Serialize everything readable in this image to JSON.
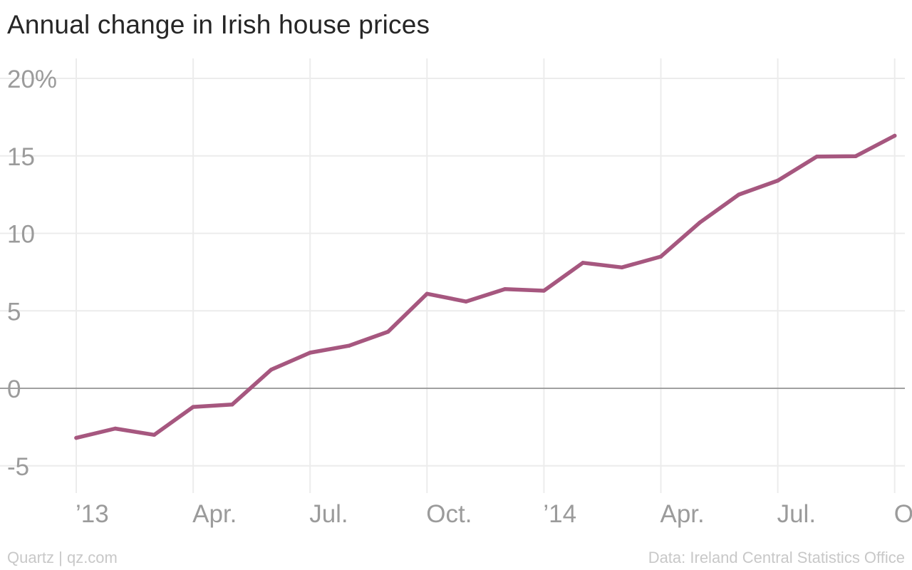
{
  "title": "Annual change in Irish house prices",
  "footer": {
    "source_left": "Quartz | qz.com",
    "source_right": "Data: Ireland Central Statistics Office"
  },
  "colors": {
    "line": "#a6577f",
    "grid": "#ececec",
    "zero_line": "#a0a0a0",
    "tick_text": "#9b9b9b"
  },
  "chart_data": {
    "type": "line",
    "title": "Annual change in Irish house prices",
    "xlabel": "",
    "ylabel": "",
    "ylim": [
      -6.5,
      20
    ],
    "y_ticks": [
      20,
      15,
      10,
      5,
      0,
      -5
    ],
    "y_tick_labels": [
      "20%",
      "15",
      "10",
      "5",
      "0",
      "-5"
    ],
    "x_tick_labels": [
      "’13",
      "Apr.",
      "Jul.",
      "Oct.",
      "’14",
      "Apr.",
      "Jul.",
      "Oct."
    ],
    "grid": true,
    "series": [
      {
        "x": [
          "2013-01",
          "2013-02",
          "2013-03",
          "2013-04",
          "2013-05",
          "2013-06",
          "2013-07",
          "2013-08",
          "2013-09",
          "2013-10",
          "2013-11",
          "2013-12",
          "2014-01",
          "2014-02",
          "2014-03",
          "2014-04",
          "2014-05",
          "2014-06",
          "2014-07",
          "2014-08",
          "2014-09",
          "2014-10"
        ],
        "values": [
          -3.2,
          -2.6,
          -3.0,
          -1.2,
          -1.05,
          1.2,
          2.3,
          2.75,
          3.65,
          6.1,
          5.6,
          6.4,
          6.3,
          8.1,
          7.8,
          8.5,
          10.7,
          12.5,
          13.4,
          14.95,
          14.98,
          16.3
        ]
      }
    ]
  }
}
